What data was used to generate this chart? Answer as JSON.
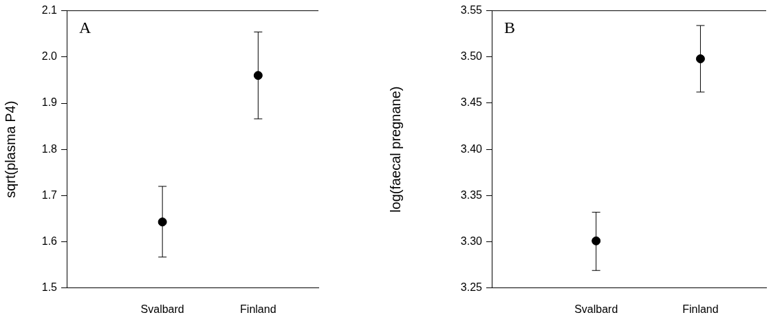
{
  "chart_data": [
    {
      "type": "scatter",
      "ylabel": "sqrt(plasma P4)",
      "annotations": [
        "A"
      ],
      "categories": [
        "Svalbard",
        "Finland"
      ],
      "series": [
        {
          "color": "#000000",
          "values": [
            1.643,
            1.96
          ],
          "errors": [
            [
              1.567,
              1.72
            ],
            [
              1.866,
              2.054
            ]
          ]
        }
      ],
      "ylim": [
        1.5,
        2.1
      ],
      "yticks": [
        1.5,
        1.6,
        1.7,
        1.8,
        1.9,
        {
          "value": 2,
          "label": "2.0"
        },
        2.1
      ],
      "marker": "circle",
      "grid": false,
      "legend": false
    },
    {
      "type": "scatter",
      "ylabel": "log(faecal pregnane)",
      "annotations": [
        "B"
      ],
      "categories": [
        "Svalbard",
        "Finland"
      ],
      "series": [
        {
          "color": "#000000",
          "values": [
            3.301,
            3.498
          ],
          "errors": [
            [
              3.269,
              3.332
            ],
            [
              3.462,
              3.534
            ]
          ]
        }
      ],
      "ylim": [
        3.25,
        3.55
      ],
      "yticks": [
        3.25,
        {
          "value": 3.3,
          "label": "3.30"
        },
        3.35,
        {
          "value": 3.4,
          "label": "3.40"
        },
        3.45,
        {
          "value": 3.5,
          "label": "3.50"
        },
        3.55
      ],
      "marker": "circle",
      "grid": false,
      "legend": false
    }
  ]
}
